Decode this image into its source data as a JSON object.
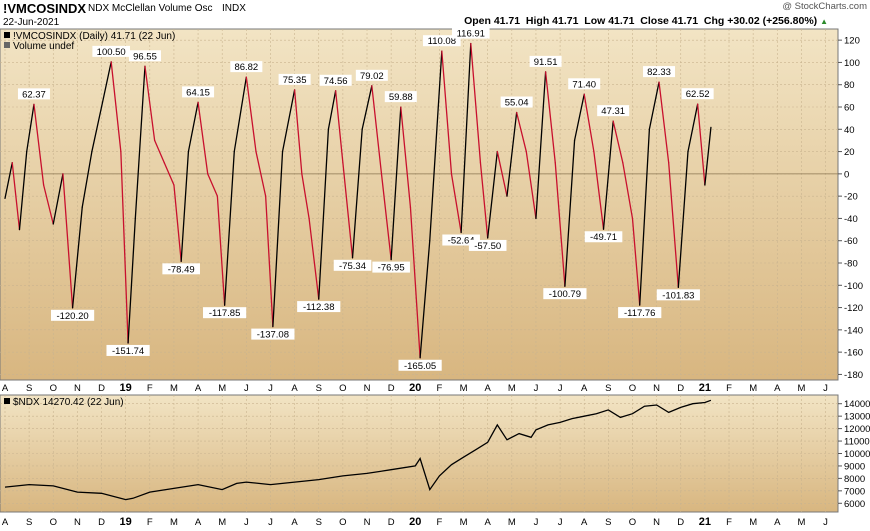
{
  "header": {
    "symbol": "!VMCOSINDX",
    "name": "NDX McClellan Volume Osc",
    "exchange": "INDX",
    "date": "22-Jun-2021",
    "quote": "Open 41.71  High 41.71  Low 41.71  Close 41.71  Chg +30.02 (+256.80%)",
    "quote_suffix": "▲",
    "brand": "@ StockCharts.com"
  },
  "colors": {
    "panel_top": "#f2e4c4",
    "panel_bottom": "#d8b680",
    "line_up": "#000000",
    "line_down": "#c8102e",
    "grid": "#c9b48f",
    "ndx_line": "#000000"
  },
  "chart_data": [
    {
      "type": "line",
      "legend": "!VMCOSINDX (Daily) 41.71 (22 Jun)",
      "legend2": "Volume undef",
      "ylim": [
        -185,
        130
      ],
      "yticks": [
        120,
        100,
        80,
        60,
        40,
        20,
        0,
        -20,
        -40,
        -60,
        -80,
        -100,
        -120,
        -140,
        -160,
        -180
      ],
      "x_months": [
        "A",
        "S",
        "O",
        "N",
        "D",
        "19",
        "F",
        "M",
        "A",
        "M",
        "J",
        "J",
        "A",
        "S",
        "O",
        "N",
        "D",
        "20",
        "F",
        "M",
        "A",
        "M",
        "J",
        "J",
        "A",
        "S",
        "O",
        "N",
        "D",
        "21",
        "F",
        "M",
        "A",
        "M",
        "J"
      ],
      "points": [
        [
          0,
          -22
        ],
        [
          0.3,
          10
        ],
        [
          0.6,
          -50
        ],
        [
          0.9,
          20
        ],
        [
          1.2,
          62.37
        ],
        [
          1.6,
          -10
        ],
        [
          2,
          -45
        ],
        [
          2.4,
          0
        ],
        [
          2.8,
          -120.2
        ],
        [
          3.2,
          -30
        ],
        [
          3.6,
          20
        ],
        [
          4,
          60
        ],
        [
          4.4,
          100.5
        ],
        [
          4.8,
          20
        ],
        [
          5.1,
          -151.74
        ],
        [
          5.4,
          -40
        ],
        [
          5.8,
          96.55
        ],
        [
          6.2,
          30
        ],
        [
          6.6,
          10
        ],
        [
          7,
          -10
        ],
        [
          7.3,
          -78.49
        ],
        [
          7.6,
          20
        ],
        [
          8,
          64.15
        ],
        [
          8.4,
          0
        ],
        [
          8.8,
          -20
        ],
        [
          9.1,
          -117.85
        ],
        [
          9.5,
          20
        ],
        [
          10,
          86.82
        ],
        [
          10.4,
          20
        ],
        [
          10.8,
          -20
        ],
        [
          11.1,
          -137.08
        ],
        [
          11.5,
          20
        ],
        [
          12,
          75.35
        ],
        [
          12.3,
          0
        ],
        [
          12.6,
          -40
        ],
        [
          13,
          -112.38
        ],
        [
          13.4,
          40
        ],
        [
          13.7,
          74.56
        ],
        [
          14,
          10
        ],
        [
          14.4,
          -75.34
        ],
        [
          14.8,
          40
        ],
        [
          15.2,
          79.02
        ],
        [
          15.6,
          0
        ],
        [
          16,
          -76.95
        ],
        [
          16.4,
          59.88
        ],
        [
          16.8,
          -30
        ],
        [
          17.2,
          -165.05
        ],
        [
          17.6,
          -60
        ],
        [
          18.1,
          110.08
        ],
        [
          18.5,
          0
        ],
        [
          18.9,
          -52.64
        ],
        [
          19.3,
          116.91
        ],
        [
          19.7,
          10
        ],
        [
          20,
          -57.5
        ],
        [
          20.4,
          20
        ],
        [
          20.8,
          -20
        ],
        [
          21.2,
          55.04
        ],
        [
          21.6,
          20
        ],
        [
          22,
          -40
        ],
        [
          22.4,
          91.51
        ],
        [
          22.8,
          10
        ],
        [
          23.2,
          -100.79
        ],
        [
          23.6,
          30
        ],
        [
          24,
          71.4
        ],
        [
          24.4,
          20
        ],
        [
          24.8,
          -49.71
        ],
        [
          25.2,
          47.31
        ],
        [
          25.6,
          10
        ],
        [
          26,
          -40
        ],
        [
          26.3,
          -117.76
        ],
        [
          26.7,
          40
        ],
        [
          27.1,
          82.33
        ],
        [
          27.5,
          10
        ],
        [
          27.9,
          -101.83
        ],
        [
          28.3,
          20
        ],
        [
          28.7,
          62.52
        ],
        [
          29,
          -10
        ],
        [
          29.25,
          41.71
        ]
      ],
      "labels": [
        [
          1.2,
          62.37
        ],
        [
          2.8,
          -120.2
        ],
        [
          4.4,
          100.5
        ],
        [
          5.1,
          -151.74
        ],
        [
          5.8,
          96.55
        ],
        [
          7.3,
          -78.49
        ],
        [
          8,
          64.15
        ],
        [
          9.1,
          -117.85
        ],
        [
          10,
          86.82
        ],
        [
          11.1,
          -137.08
        ],
        [
          12,
          75.35
        ],
        [
          13,
          -112.38
        ],
        [
          13.7,
          74.56
        ],
        [
          14.4,
          -75.34
        ],
        [
          15.2,
          79.02
        ],
        [
          16,
          -76.95
        ],
        [
          16.4,
          59.88
        ],
        [
          17.2,
          -165.05
        ],
        [
          18.1,
          110.08
        ],
        [
          18.9,
          -52.64
        ],
        [
          19.3,
          116.91
        ],
        [
          20,
          -57.5
        ],
        [
          21.2,
          55.04
        ],
        [
          22.4,
          91.51
        ],
        [
          23.2,
          -100.79
        ],
        [
          24,
          71.4
        ],
        [
          24.8,
          -49.71
        ],
        [
          25.2,
          47.31
        ],
        [
          26.3,
          -117.76
        ],
        [
          27.1,
          82.33
        ],
        [
          27.9,
          -101.83
        ],
        [
          28.7,
          62.52
        ]
      ],
      "grid": true
    },
    {
      "type": "line",
      "legend": "$NDX 14270.42 (22 Jun)",
      "ylim": [
        5300,
        14700
      ],
      "yticks": [
        14000,
        13000,
        12000,
        11000,
        10000,
        9000,
        8000,
        7000,
        6000
      ],
      "x_months": [
        "A",
        "S",
        "O",
        "N",
        "D",
        "19",
        "F",
        "M",
        "A",
        "M",
        "J",
        "J",
        "A",
        "S",
        "O",
        "N",
        "D",
        "20",
        "F",
        "M",
        "A",
        "M",
        "J",
        "J",
        "A",
        "S",
        "O",
        "N",
        "D",
        "21",
        "F",
        "M",
        "A",
        "M",
        "J"
      ],
      "points": [
        [
          0,
          7300
        ],
        [
          1,
          7500
        ],
        [
          2,
          7400
        ],
        [
          3,
          6900
        ],
        [
          4,
          6800
        ],
        [
          5,
          6300
        ],
        [
          5.3,
          6400
        ],
        [
          6,
          6900
        ],
        [
          7,
          7200
        ],
        [
          8,
          7500
        ],
        [
          9,
          7100
        ],
        [
          9.6,
          7600
        ],
        [
          10,
          7700
        ],
        [
          11,
          7500
        ],
        [
          12,
          7700
        ],
        [
          13,
          7900
        ],
        [
          14,
          8200
        ],
        [
          15,
          8400
        ],
        [
          16,
          8700
        ],
        [
          17,
          9000
        ],
        [
          17.2,
          9600
        ],
        [
          17.6,
          7100
        ],
        [
          18,
          8200
        ],
        [
          18.5,
          9100
        ],
        [
          19,
          9700
        ],
        [
          19.5,
          10300
        ],
        [
          20,
          10900
        ],
        [
          20.4,
          12300
        ],
        [
          20.8,
          11100
        ],
        [
          21.3,
          11600
        ],
        [
          21.8,
          11300
        ],
        [
          22,
          11900
        ],
        [
          22.5,
          12300
        ],
        [
          23,
          12500
        ],
        [
          23.5,
          12800
        ],
        [
          24,
          13000
        ],
        [
          24.5,
          13200
        ],
        [
          25,
          13500
        ],
        [
          25.5,
          12900
        ],
        [
          26,
          13200
        ],
        [
          26.5,
          13800
        ],
        [
          27,
          13900
        ],
        [
          27.5,
          13300
        ],
        [
          28,
          13700
        ],
        [
          28.5,
          14000
        ],
        [
          29,
          14100
        ],
        [
          29.25,
          14270.42
        ]
      ],
      "grid": true
    }
  ]
}
